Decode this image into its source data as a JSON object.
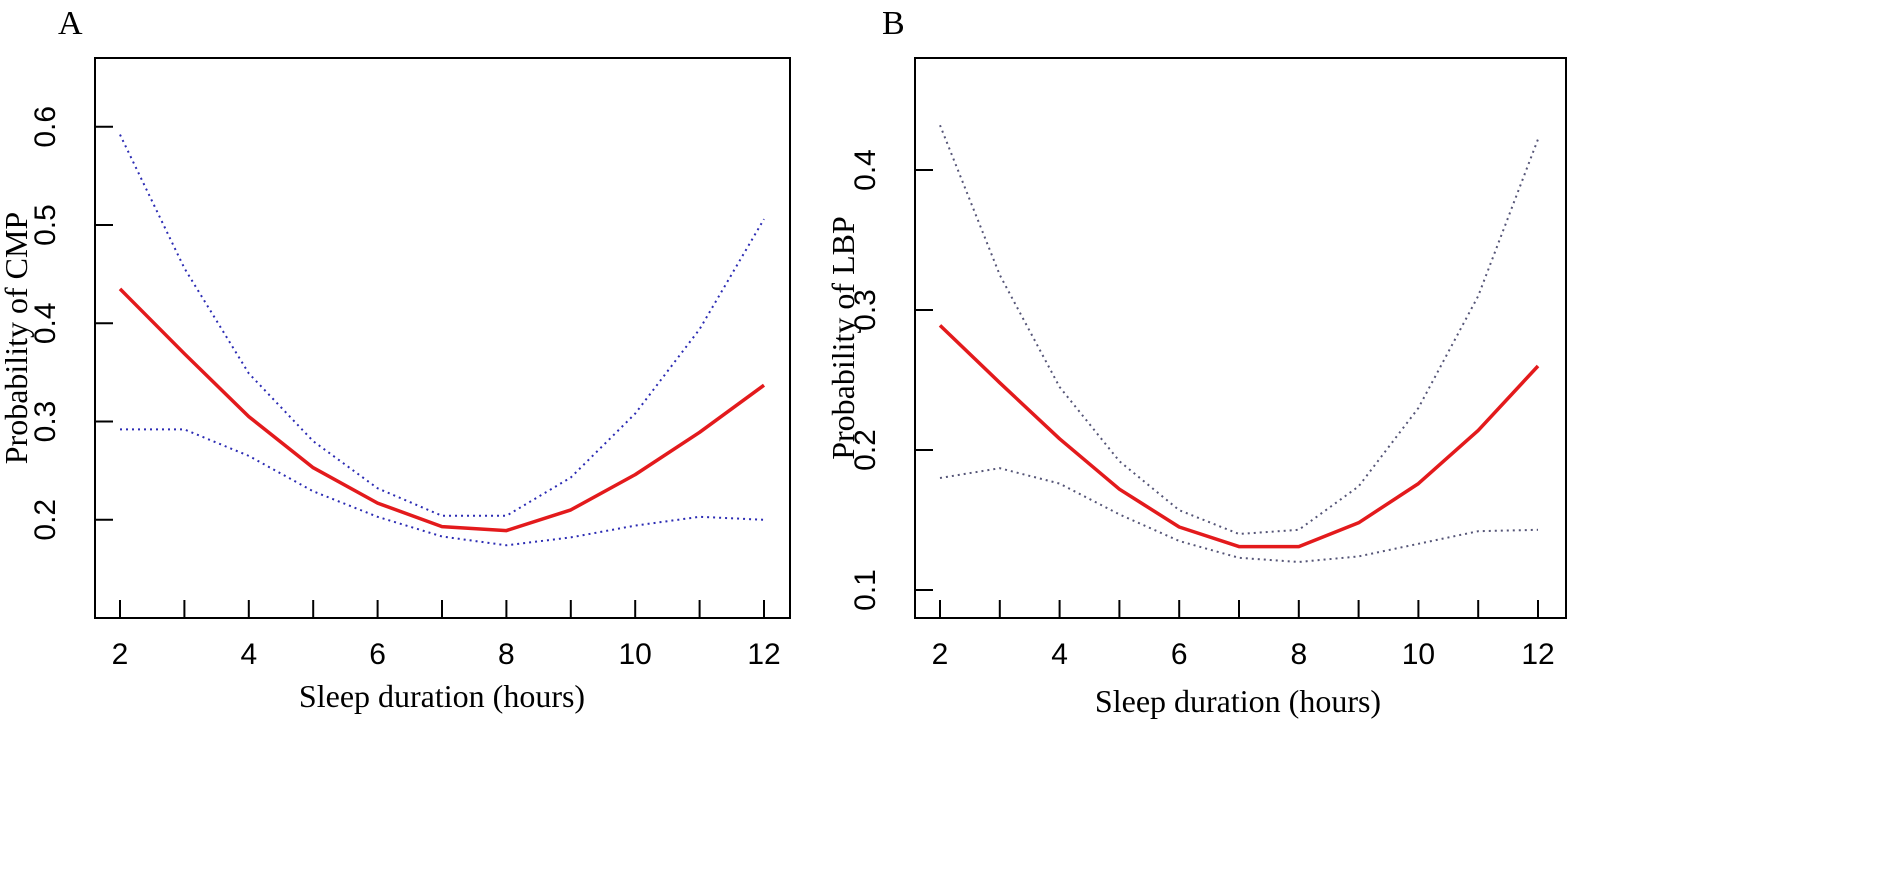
{
  "chart_data": [
    {
      "panel": "A",
      "type": "line",
      "xlabel": "Sleep duration (hours)",
      "ylabel": "Probability of CMP",
      "xlim": [
        2,
        12
      ],
      "ylim": [
        0.1,
        0.67
      ],
      "x_ticks": [
        2,
        3,
        4,
        5,
        6,
        7,
        8,
        9,
        10,
        11,
        12
      ],
      "x_tick_labels": [
        "2",
        "",
        "4",
        "",
        "6",
        "",
        "8",
        "",
        "10",
        "",
        "12"
      ],
      "y_ticks": [
        0.2,
        0.3,
        0.4,
        0.5,
        0.6
      ],
      "y_tick_labels": [
        "0.2",
        "0.3",
        "0.4",
        "0.5",
        "0.6"
      ],
      "x": [
        2,
        3,
        4,
        5,
        6,
        7,
        8,
        9,
        10,
        11,
        12
      ],
      "series": [
        {
          "name": "estimate",
          "color": "#e31a1c",
          "values": [
            0.435,
            0.369,
            0.305,
            0.253,
            0.217,
            0.193,
            0.189,
            0.21,
            0.246,
            0.289,
            0.337
          ]
        },
        {
          "name": "upper",
          "color": "#2b2bb3",
          "values": [
            0.592,
            0.456,
            0.349,
            0.28,
            0.232,
            0.204,
            0.204,
            0.243,
            0.308,
            0.394,
            0.506
          ]
        },
        {
          "name": "lower",
          "color": "#2b2bb3",
          "values": [
            0.292,
            0.292,
            0.265,
            0.229,
            0.203,
            0.183,
            0.174,
            0.182,
            0.194,
            0.203,
            0.2
          ]
        }
      ]
    },
    {
      "panel": "B",
      "type": "line",
      "xlabel": "Sleep duration (hours)",
      "ylabel": "Probability of LBP",
      "xlim": [
        2,
        12
      ],
      "ylim": [
        0.08,
        0.48
      ],
      "x_ticks": [
        2,
        3,
        4,
        5,
        6,
        7,
        8,
        9,
        10,
        11,
        12
      ],
      "x_tick_labels": [
        "2",
        "",
        "4",
        "",
        "6",
        "",
        "8",
        "",
        "10",
        "",
        "12"
      ],
      "y_ticks": [
        0.1,
        0.2,
        0.3,
        0.4
      ],
      "y_tick_labels": [
        "0.1",
        "0.2",
        "0.3",
        "0.4"
      ],
      "x": [
        2,
        3,
        4,
        5,
        6,
        7,
        8,
        9,
        10,
        11,
        12
      ],
      "series": [
        {
          "name": "estimate",
          "color": "#e31a1c",
          "values": [
            0.289,
            0.248,
            0.208,
            0.172,
            0.145,
            0.131,
            0.131,
            0.148,
            0.176,
            0.214,
            0.26
          ]
        },
        {
          "name": "upper",
          "color": "#555577",
          "values": [
            0.432,
            0.325,
            0.245,
            0.192,
            0.157,
            0.14,
            0.143,
            0.174,
            0.23,
            0.31,
            0.422
          ]
        },
        {
          "name": "lower",
          "color": "#555577",
          "values": [
            0.18,
            0.187,
            0.176,
            0.154,
            0.135,
            0.123,
            0.12,
            0.124,
            0.133,
            0.142,
            0.143
          ]
        }
      ]
    }
  ]
}
